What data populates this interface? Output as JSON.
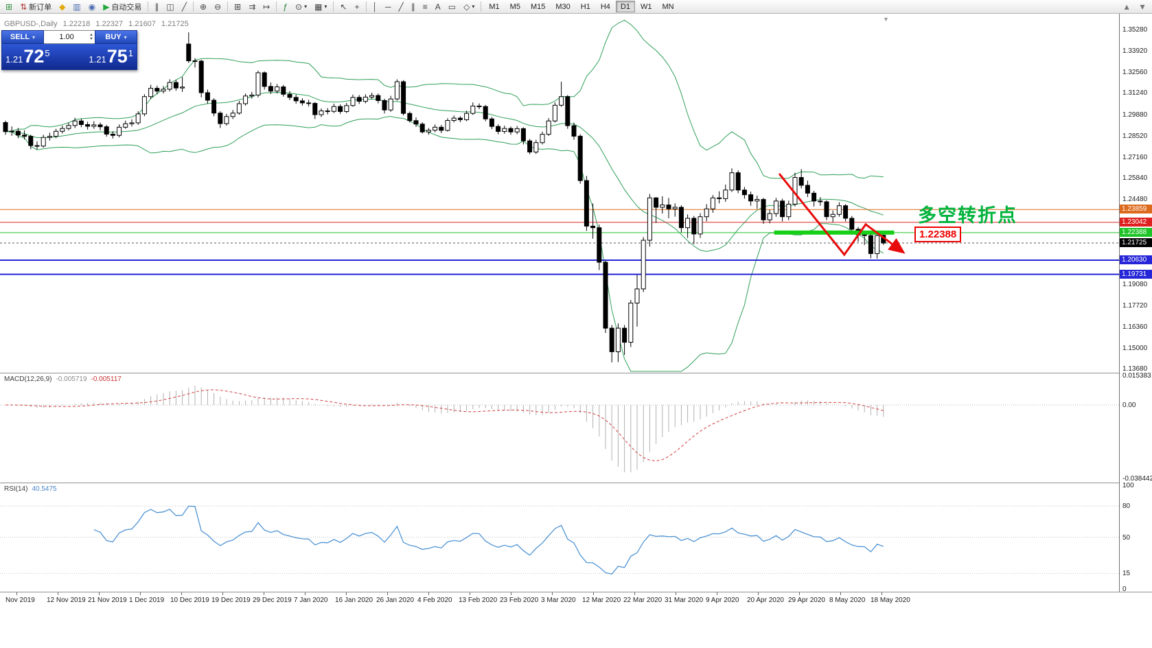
{
  "toolbar": {
    "new_order_label": "新订单",
    "autotrade_label": "自动交易",
    "items": [
      {
        "name": "new-chart",
        "glyph": "⊞",
        "color": "#2f8f3c"
      },
      {
        "name": "new-order",
        "glyph": "⇅",
        "color": "#b03434",
        "label": "新订单"
      },
      {
        "name": "metaeditor",
        "glyph": "◆",
        "color": "#e2a90c"
      },
      {
        "name": "market-watch",
        "glyph": "▥",
        "color": "#4a6ab0"
      },
      {
        "name": "community",
        "glyph": "◉",
        "color": "#4a6ab0"
      },
      {
        "name": "autotrade",
        "glyph": "▶",
        "color": "#21a83b",
        "label": "自动交易"
      },
      {
        "sep": 1
      },
      {
        "name": "chart-bars",
        "glyph": "∥",
        "color": "#444"
      },
      {
        "name": "chart-candles",
        "glyph": "◫",
        "color": "#444"
      },
      {
        "name": "chart-line",
        "glyph": "╱",
        "color": "#444"
      },
      {
        "sep": 1
      },
      {
        "name": "zoom-in",
        "glyph": "⊕",
        "color": "#444"
      },
      {
        "name": "zoom-out",
        "glyph": "⊖",
        "color": "#444"
      },
      {
        "sep": 1
      },
      {
        "name": "tile-windows",
        "glyph": "⊞",
        "color": "#444"
      },
      {
        "name": "auto-scroll",
        "glyph": "⇉",
        "color": "#444"
      },
      {
        "name": "chart-shift",
        "glyph": "↦",
        "color": "#444"
      },
      {
        "sep": 1
      },
      {
        "name": "indicators",
        "glyph": "ƒ",
        "color": "#1f7f2f"
      },
      {
        "name": "periods",
        "glyph": "⊙",
        "caret": 1,
        "color": "#444"
      },
      {
        "name": "templates",
        "glyph": "▦",
        "caret": 1,
        "color": "#444"
      },
      {
        "sep": 1
      },
      {
        "name": "cursor",
        "glyph": "↖",
        "color": "#444"
      },
      {
        "name": "crosshair",
        "glyph": "+",
        "color": "#444"
      },
      {
        "sep": 1
      },
      {
        "name": "vertical-line",
        "glyph": "│",
        "color": "#444"
      },
      {
        "name": "horizontal-line",
        "glyph": "─",
        "color": "#444"
      },
      {
        "name": "trendline",
        "glyph": "╱",
        "color": "#444"
      },
      {
        "name": "equidistant-channel",
        "glyph": "∥",
        "color": "#444"
      },
      {
        "name": "fibonacci",
        "glyph": "≡",
        "color": "#444"
      },
      {
        "name": "text",
        "glyph": "A",
        "color": "#444"
      },
      {
        "name": "text-label",
        "glyph": "▭",
        "color": "#444"
      },
      {
        "name": "arrows",
        "glyph": "◇",
        "caret": 1,
        "color": "#444"
      },
      {
        "sep": 1
      }
    ],
    "timeframes": [
      "M1",
      "M5",
      "M15",
      "M30",
      "H1",
      "H4",
      "D1",
      "W1",
      "MN"
    ],
    "active_timeframe": "D1",
    "right_items": [
      {
        "name": "scroll-up",
        "glyph": "▲",
        "color": "#777"
      },
      {
        "name": "scroll-down",
        "glyph": "▼",
        "color": "#777"
      }
    ]
  },
  "chart_header": {
    "symbol_label": "GBPUSD-,Daily",
    "open": "1.22218",
    "high": "1.22327",
    "low": "1.21607",
    "close": "1.21725"
  },
  "order_panel": {
    "sell_label": "SELL",
    "buy_label": "BUY",
    "volume": "1.00",
    "sell_price_big": "1.21",
    "sell_price_main": "72",
    "sell_price_sup": "5",
    "buy_price_big": "1.21",
    "buy_price_main": "75",
    "buy_price_sup": "1"
  },
  "annotations": {
    "turning_point_text": "多空转折点",
    "turning_point_color": "#00b33c",
    "level_callout": "1.22388",
    "level_callout_color": "#ee0000"
  },
  "price_axis": {
    "regular": [
      "1.35280",
      "1.33920",
      "1.32560",
      "1.31240",
      "1.29880",
      "1.28520",
      "1.27160",
      "1.25840",
      "1.24480",
      "1.19080",
      "1.17720",
      "1.16360",
      "1.15000",
      "1.13680"
    ],
    "special": [
      {
        "value": "1.23859",
        "color": "#dd6a1c"
      },
      {
        "value": "1.23042",
        "color": "#e02020"
      },
      {
        "value": "1.22388",
        "color": "#1ec428"
      },
      {
        "value": "1.21725",
        "color": "#000000"
      },
      {
        "value": "1.20630",
        "color": "#2626d8"
      },
      {
        "value": "1.19731",
        "color": "#2626d8"
      }
    ]
  },
  "macd_panel": {
    "label_name": "MACD(12,26,9)",
    "value_main": "-0.005719",
    "value_signal": "-0.005117",
    "axis": [
      "0.015383",
      "0.00",
      "-0.038442"
    ]
  },
  "rsi_panel": {
    "label_name": "RSI(14)",
    "value": "40.5475",
    "axis": [
      "100",
      "80",
      "50",
      "15",
      "0"
    ]
  },
  "date_axis": [
    "Nov 2019",
    "12 Nov 2019",
    "21 Nov 2019",
    "1 Dec 2019",
    "10 Dec 2019",
    "19 Dec 2019",
    "29 Dec 2019",
    "7 Jan 2020",
    "16 Jan 2020",
    "26 Jan 2020",
    "4 Feb 2020",
    "13 Feb 2020",
    "23 Feb 2020",
    "3 Mar 2020",
    "12 Mar 2020",
    "22 Mar 2020",
    "31 Mar 2020",
    "9 Apr 2020",
    "20 Apr 2020",
    "29 Apr 2020",
    "8 May 2020",
    "18 May 2020"
  ],
  "chart_data": {
    "type": "candlestick",
    "symbol": "GBPUSD",
    "timeframe": "Daily",
    "price_range": {
      "top": 1.3528,
      "bottom": 1.1368
    },
    "candles": [
      [
        1.294,
        1.2952,
        1.2862,
        1.2882
      ],
      [
        1.2882,
        1.2915,
        1.2855,
        1.2885
      ],
      [
        1.2885,
        1.2905,
        1.284,
        1.286
      ],
      [
        1.286,
        1.289,
        1.2832,
        1.2852
      ],
      [
        1.2852,
        1.2862,
        1.277,
        1.2793
      ],
      [
        1.2793,
        1.282,
        1.2768,
        1.279
      ],
      [
        1.279,
        1.2862,
        1.278,
        1.2845
      ],
      [
        1.2845,
        1.2875,
        1.2825,
        1.2852
      ],
      [
        1.2852,
        1.29,
        1.284,
        1.2884
      ],
      [
        1.2884,
        1.292,
        1.287,
        1.2902
      ],
      [
        1.2902,
        1.294,
        1.289,
        1.2921
      ],
      [
        1.2921,
        1.297,
        1.2905,
        1.295
      ],
      [
        1.295,
        1.2965,
        1.291,
        1.2927
      ],
      [
        1.2927,
        1.2945,
        1.2895,
        1.2916
      ],
      [
        1.2916,
        1.2948,
        1.29,
        1.2925
      ],
      [
        1.2925,
        1.294,
        1.289,
        1.2913
      ],
      [
        1.2913,
        1.2925,
        1.285,
        1.2866
      ],
      [
        1.2866,
        1.2885,
        1.2838,
        1.2858
      ],
      [
        1.2858,
        1.2928,
        1.2845,
        1.291
      ],
      [
        1.291,
        1.2952,
        1.29,
        1.2932
      ],
      [
        1.2932,
        1.296,
        1.2915,
        1.2938
      ],
      [
        1.2938,
        1.3012,
        1.2925,
        1.2995
      ],
      [
        1.2995,
        1.312,
        1.298,
        1.3105
      ],
      [
        1.3105,
        1.318,
        1.309,
        1.3158
      ],
      [
        1.3158,
        1.3175,
        1.312,
        1.314
      ],
      [
        1.314,
        1.3172,
        1.3125,
        1.3152
      ],
      [
        1.3152,
        1.3215,
        1.3138,
        1.3195
      ],
      [
        1.3195,
        1.3212,
        1.3142,
        1.316
      ],
      [
        1.316,
        1.323,
        1.3135,
        1.3166
      ],
      [
        1.344,
        1.3514,
        1.332,
        1.3333
      ],
      [
        1.3333,
        1.335,
        1.329,
        1.3331
      ],
      [
        1.3331,
        1.334,
        1.31,
        1.313
      ],
      [
        1.313,
        1.315,
        1.306,
        1.3082
      ],
      [
        1.3082,
        1.3095,
        1.298,
        1.3
      ],
      [
        1.3,
        1.3012,
        1.2905,
        1.2933
      ],
      [
        1.2933,
        1.2995,
        1.292,
        1.2978
      ],
      [
        1.2978,
        1.302,
        1.2962,
        1.3
      ],
      [
        1.3,
        1.3078,
        1.299,
        1.306
      ],
      [
        1.306,
        1.3125,
        1.3048,
        1.3109
      ],
      [
        1.3109,
        1.3135,
        1.3092,
        1.3115
      ],
      [
        1.3115,
        1.327,
        1.31,
        1.3257
      ],
      [
        1.3257,
        1.3265,
        1.315,
        1.317
      ],
      [
        1.317,
        1.3195,
        1.3122,
        1.314
      ],
      [
        1.314,
        1.3185,
        1.3125,
        1.3167
      ],
      [
        1.3167,
        1.318,
        1.3105,
        1.312
      ],
      [
        1.312,
        1.314,
        1.3082,
        1.31
      ],
      [
        1.31,
        1.3118,
        1.306,
        1.3078
      ],
      [
        1.3078,
        1.3095,
        1.3048,
        1.3065
      ],
      [
        1.3065,
        1.3085,
        1.3042,
        1.3062
      ],
      [
        1.3062,
        1.307,
        1.2962,
        1.299
      ],
      [
        1.299,
        1.303,
        1.2975,
        1.3014
      ],
      [
        1.3014,
        1.3032,
        1.2992,
        1.3011
      ],
      [
        1.3011,
        1.306,
        1.3,
        1.3042
      ],
      [
        1.3042,
        1.3055,
        1.2995,
        1.301
      ],
      [
        1.301,
        1.3065,
        1.3,
        1.3048
      ],
      [
        1.3048,
        1.3118,
        1.304,
        1.31
      ],
      [
        1.31,
        1.3115,
        1.3058,
        1.3075
      ],
      [
        1.3075,
        1.312,
        1.3062,
        1.3102
      ],
      [
        1.3102,
        1.313,
        1.309,
        1.3112
      ],
      [
        1.3112,
        1.3125,
        1.3062,
        1.308
      ],
      [
        1.308,
        1.3092,
        1.2998,
        1.302
      ],
      [
        1.302,
        1.311,
        1.3008,
        1.309
      ],
      [
        1.309,
        1.3215,
        1.308,
        1.32
      ],
      [
        1.32,
        1.321,
        1.2985,
        1.2998
      ],
      [
        1.2998,
        1.301,
        1.294,
        1.2952
      ],
      [
        1.2952,
        1.2972,
        1.2912,
        1.293
      ],
      [
        1.293,
        1.2942,
        1.287,
        1.288
      ],
      [
        1.288,
        1.2905,
        1.2862,
        1.2891
      ],
      [
        1.2891,
        1.2928,
        1.2878,
        1.291
      ],
      [
        1.291,
        1.2925,
        1.2872,
        1.289
      ],
      [
        1.289,
        1.2968,
        1.2882,
        1.2953
      ],
      [
        1.2953,
        1.2985,
        1.294,
        1.2968
      ],
      [
        1.2968,
        1.298,
        1.2942,
        1.2958
      ],
      [
        1.2958,
        1.3015,
        1.2948,
        1.2998
      ],
      [
        1.2998,
        1.3068,
        1.2988,
        1.3045
      ],
      [
        1.3045,
        1.3062,
        1.3025,
        1.3042
      ],
      [
        1.3042,
        1.3052,
        1.2948,
        1.2963
      ],
      [
        1.2963,
        1.2975,
        1.2898,
        1.2915
      ],
      [
        1.2915,
        1.2928,
        1.2865,
        1.2883
      ],
      [
        1.2883,
        1.292,
        1.2868,
        1.2902
      ],
      [
        1.2902,
        1.2915,
        1.2862,
        1.288
      ],
      [
        1.288,
        1.2918,
        1.2865,
        1.2901
      ],
      [
        1.2901,
        1.291,
        1.28,
        1.2823
      ],
      [
        1.2823,
        1.2835,
        1.2738,
        1.2752
      ],
      [
        1.2752,
        1.283,
        1.274,
        1.2812
      ],
      [
        1.2812,
        1.2882,
        1.28,
        1.2865
      ],
      [
        1.2865,
        1.2968,
        1.2855,
        1.295
      ],
      [
        1.295,
        1.3068,
        1.294,
        1.305
      ],
      [
        1.305,
        1.32,
        1.304,
        1.3105
      ],
      [
        1.3105,
        1.3115,
        1.29,
        1.292
      ],
      [
        1.292,
        1.294,
        1.283,
        1.2853
      ],
      [
        1.2853,
        1.2865,
        1.255,
        1.257
      ],
      [
        1.257,
        1.26,
        1.225,
        1.228
      ],
      [
        1.228,
        1.2425,
        1.22,
        1.227
      ],
      [
        1.227,
        1.229,
        1.2,
        1.205
      ],
      [
        1.205,
        1.206,
        1.16,
        1.163
      ],
      [
        1.163,
        1.165,
        1.1412,
        1.148
      ],
      [
        1.148,
        1.166,
        1.1414,
        1.163
      ],
      [
        1.163,
        1.165,
        1.146,
        1.154
      ],
      [
        1.154,
        1.181,
        1.151,
        1.179
      ],
      [
        1.179,
        1.197,
        1.164,
        1.188
      ],
      [
        1.188,
        1.221,
        1.186,
        1.219
      ],
      [
        1.219,
        1.2485,
        1.215,
        1.246
      ],
      [
        1.246,
        1.2465,
        1.23,
        1.24
      ],
      [
        1.24,
        1.247,
        1.236,
        1.2415
      ],
      [
        1.2415,
        1.246,
        1.233,
        1.239
      ],
      [
        1.239,
        1.2425,
        1.234,
        1.24
      ],
      [
        1.24,
        1.2413,
        1.224,
        1.227
      ],
      [
        1.227,
        1.2355,
        1.2205,
        1.233
      ],
      [
        1.233,
        1.2345,
        1.2165,
        1.223
      ],
      [
        1.223,
        1.2362,
        1.2205,
        1.234
      ],
      [
        1.234,
        1.242,
        1.231,
        1.239
      ],
      [
        1.239,
        1.2478,
        1.2365,
        1.246
      ],
      [
        1.246,
        1.2502,
        1.2425,
        1.2455
      ],
      [
        1.2455,
        1.2545,
        1.2435,
        1.251
      ],
      [
        1.251,
        1.2648,
        1.2498,
        1.262
      ],
      [
        1.262,
        1.2635,
        1.249,
        1.251
      ],
      [
        1.251,
        1.253,
        1.2455,
        1.248
      ],
      [
        1.248,
        1.25,
        1.241,
        1.244
      ],
      [
        1.244,
        1.2475,
        1.239,
        1.245
      ],
      [
        1.245,
        1.246,
        1.2295,
        1.232
      ],
      [
        1.232,
        1.2385,
        1.2298,
        1.236
      ],
      [
        1.236,
        1.246,
        1.234,
        1.244
      ],
      [
        1.244,
        1.2455,
        1.231,
        1.234
      ],
      [
        1.234,
        1.2442,
        1.2318,
        1.242
      ],
      [
        1.242,
        1.262,
        1.2405,
        1.259
      ],
      [
        1.259,
        1.2643,
        1.252,
        1.254
      ],
      [
        1.254,
        1.257,
        1.2465,
        1.249
      ],
      [
        1.249,
        1.2505,
        1.2405,
        1.244
      ],
      [
        1.244,
        1.2465,
        1.241,
        1.2435
      ],
      [
        1.2435,
        1.2445,
        1.2318,
        1.234
      ],
      [
        1.234,
        1.238,
        1.2305,
        1.2355
      ],
      [
        1.2355,
        1.2432,
        1.234,
        1.241
      ],
      [
        1.241,
        1.242,
        1.231,
        1.233
      ],
      [
        1.233,
        1.2345,
        1.2225,
        1.226
      ],
      [
        1.226,
        1.2275,
        1.218,
        1.2225
      ],
      [
        1.2225,
        1.2245,
        1.216,
        1.222
      ],
      [
        1.222,
        1.2235,
        1.2075,
        1.2105
      ],
      [
        1.2105,
        1.223,
        1.2073,
        1.222
      ],
      [
        1.22218,
        1.22327,
        1.21607,
        1.21725
      ]
    ],
    "bollinger": {
      "period": 20,
      "deviation": 2,
      "color": "#2e9e57"
    },
    "levels": [
      {
        "price": 1.23859,
        "color": "#dd6a1c",
        "width": 1
      },
      {
        "price": 1.23042,
        "color": "#e02020",
        "width": 1
      },
      {
        "price": 1.22388,
        "color": "#1ec428",
        "width": 1
      },
      {
        "price": 1.2063,
        "color": "#2626d8",
        "width": 2
      },
      {
        "price": 1.19731,
        "color": "#2626d8",
        "width": 2
      }
    ],
    "current_price": {
      "value": 1.21725,
      "color": "#555555"
    },
    "support_bar": {
      "price": 1.2239,
      "from_index": 121.7,
      "to_index": 140.7,
      "color": "#17cf17"
    },
    "trend_arrow": {
      "color": "#e80b0b",
      "points": [
        [
          122.5,
          1.2614
        ],
        [
          132.8,
          1.2098
        ],
        [
          136.2,
          1.2291
        ],
        [
          142.2,
          1.2112
        ]
      ]
    },
    "macd": {
      "fast": 12,
      "slow": 26,
      "signal": 9,
      "scale_max": 0.015383,
      "scale_min": -0.038442,
      "histogram_color": "#b0b0b0",
      "signal_color": "#d23f3f"
    },
    "rsi": {
      "period": 14,
      "levels": [
        80,
        50,
        15
      ],
      "color": "#4f94d4"
    }
  }
}
